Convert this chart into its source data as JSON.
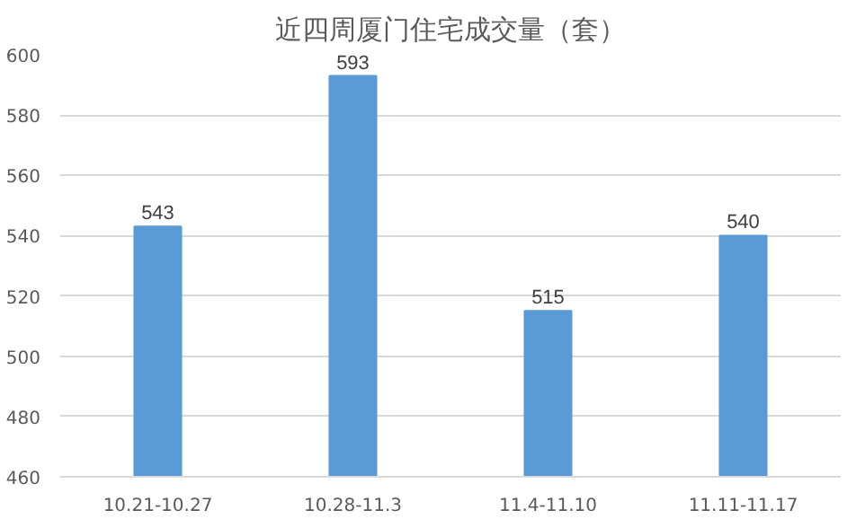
{
  "chart_data": {
    "type": "bar",
    "title": "近四周厦门住宅成交量（套）",
    "categories": [
      "10.21-10.27",
      "10.28-11.3",
      "11.4-11.10",
      "11.11-11.17"
    ],
    "values": [
      543,
      593,
      515,
      540
    ],
    "color": "#5b9bd5",
    "ylim": [
      460,
      600
    ],
    "yticks": [
      460,
      480,
      500,
      520,
      540,
      560,
      580,
      600
    ],
    "grid": "y",
    "data_labels": true
  }
}
